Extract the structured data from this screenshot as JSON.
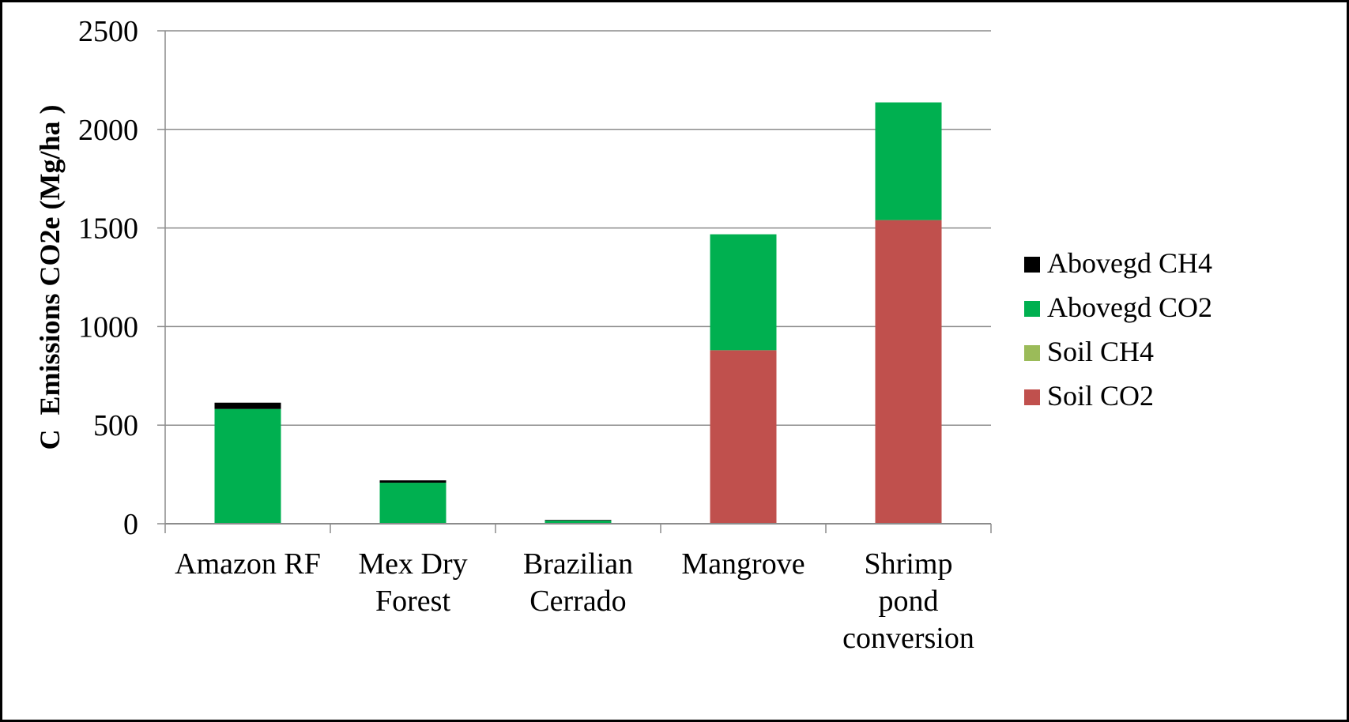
{
  "chart_data": {
    "type": "bar",
    "stacked": true,
    "title": "",
    "xlabel": "",
    "ylabel": "C  Emissions CO2e (Mg/ha )",
    "ylim": [
      0,
      2500
    ],
    "yticks": [
      0,
      500,
      1000,
      1500,
      2000,
      2500
    ],
    "grid": true,
    "legend_position": "right",
    "categories": [
      [
        "Amazon RF"
      ],
      [
        "Mex Dry",
        "Forest"
      ],
      [
        "Brazilian",
        "Cerrado"
      ],
      [
        "Mangrove"
      ],
      [
        "Shrimp",
        "pond",
        "conversion"
      ]
    ],
    "series": [
      {
        "name": "Soil CO2",
        "color": "#c0504d",
        "values": [
          0,
          0,
          0,
          880,
          1540
        ]
      },
      {
        "name": "Soil CH4",
        "color": "#9bbb59",
        "values": [
          0,
          0,
          0,
          0,
          0
        ]
      },
      {
        "name": "Abovegd CO2",
        "color": "#00b050",
        "values": [
          582,
          208,
          16,
          588,
          597
        ]
      },
      {
        "name": "Abovegd CH4",
        "color": "#000000",
        "values": [
          32,
          12,
          3,
          0,
          0
        ]
      }
    ],
    "legend_order": [
      "Abovegd CH4",
      "Abovegd CO2",
      "Soil CH4",
      "Soil CO2"
    ]
  }
}
